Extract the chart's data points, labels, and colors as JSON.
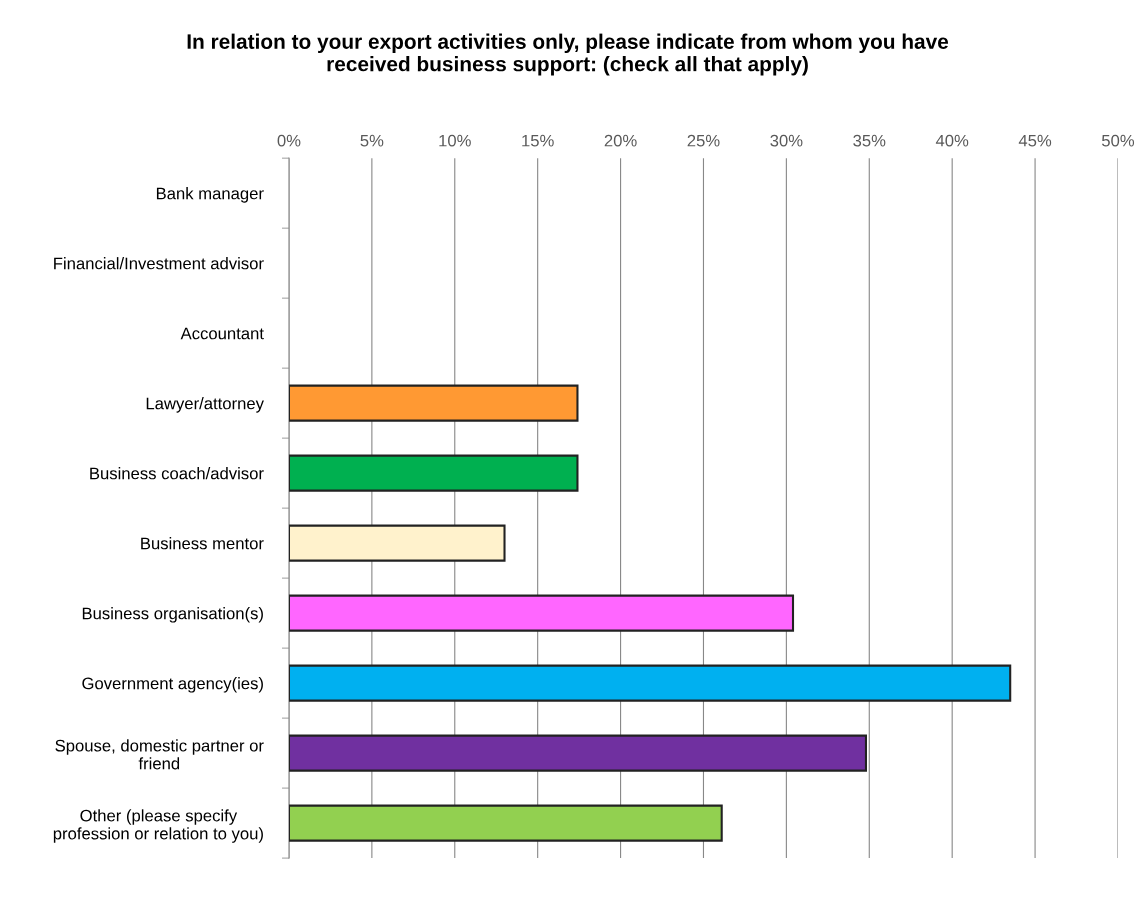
{
  "chart_data": {
    "type": "bar",
    "orientation": "horizontal",
    "title": "In relation to your export activities only, please indicate from whom you have\nreceived business support: (check all that apply)",
    "categories": [
      "Bank manager",
      "Financial/Investment advisor",
      "Accountant",
      "Lawyer/attorney",
      "Business coach/advisor",
      "Business mentor",
      "Business organisation(s)",
      "Government agency(ies)",
      "Spouse, domestic partner or\nfriend",
      "Other (please specify\nprofession or relation to you)"
    ],
    "values": [
      0,
      0,
      0,
      17.4,
      17.4,
      13.0,
      30.4,
      43.5,
      34.8,
      26.1
    ],
    "colors": [
      "#ffffff",
      "#ffffff",
      "#ffffff",
      "#ff9933",
      "#00b050",
      "#fff2cc",
      "#ff66ff",
      "#00b0f0",
      "#7030a0",
      "#92d050"
    ],
    "xlim": [
      0,
      50
    ],
    "xticks": [
      {
        "value": 0,
        "label": "0%"
      },
      {
        "value": 5,
        "label": "5%"
      },
      {
        "value": 10,
        "label": "10%"
      },
      {
        "value": 15,
        "label": "15%"
      },
      {
        "value": 20,
        "label": "20%"
      },
      {
        "value": 25,
        "label": "25%"
      },
      {
        "value": 30,
        "label": "30%"
      },
      {
        "value": 35,
        "label": "35%"
      },
      {
        "value": 40,
        "label": "40%"
      },
      {
        "value": 45,
        "label": "45%"
      },
      {
        "value": 50,
        "label": "50%"
      }
    ],
    "grid": "x",
    "legend": false
  }
}
